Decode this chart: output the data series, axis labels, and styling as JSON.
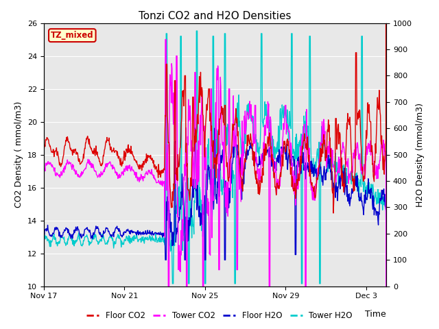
{
  "title": "Tonzi CO2 and H2O Densities",
  "xlabel": "Time",
  "ylabel_left": "CO2 Density ( mmol/m3)",
  "ylabel_right": "H2O Density (mmol/m3)",
  "annotation": "TZ_mixed",
  "xlim_days": [
    0,
    17
  ],
  "ylim_left": [
    10,
    26
  ],
  "ylim_right": [
    0,
    1000
  ],
  "yticks_left": [
    10,
    12,
    14,
    16,
    18,
    20,
    22,
    24,
    26
  ],
  "yticks_right": [
    0,
    100,
    200,
    300,
    400,
    500,
    600,
    700,
    800,
    900,
    1000
  ],
  "xtick_labels": [
    "Nov 17",
    "Nov 21",
    "Nov 25",
    "Nov 29",
    "Dec 3"
  ],
  "xtick_positions": [
    0,
    4,
    8,
    12,
    16
  ],
  "colors": {
    "floor_co2": "#dd0000",
    "tower_co2": "#ff00ff",
    "floor_h2o": "#0000cc",
    "tower_h2o": "#00cccc"
  },
  "legend_labels": [
    "Floor CO2",
    "Tower CO2",
    "Floor H2O",
    "Tower H2O"
  ],
  "background_color": "#e8e8e8",
  "grid_color": "#ffffff",
  "title_fontsize": 11,
  "axis_fontsize": 9,
  "tick_fontsize": 8,
  "linewidth": 1.0
}
